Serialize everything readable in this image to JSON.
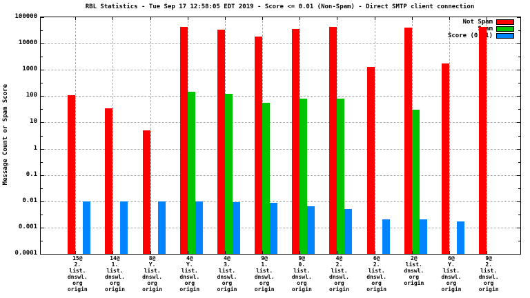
{
  "title": "RBL Statistics - Tue Sep 17 12:58:05 EDT 2019 - Score <= 0.01 (Non-Spam) - Direct SMTP client connection",
  "y_axis": {
    "label": "Message Count or Spam Score",
    "tick_labels": [
      "100000",
      "10000",
      "1000",
      "100",
      "10",
      "1",
      "0.1",
      "0.01",
      "0.001",
      "0.0001"
    ]
  },
  "legend": {
    "position": "top-right-inside",
    "items": [
      {
        "label": "Not Spam",
        "color": "#ff0000"
      },
      {
        "label": "Spam",
        "color": "#00c400"
      },
      {
        "label": "Score (0..1)",
        "color": "#0084ff"
      }
    ]
  },
  "colors": {
    "not_spam": "#ff0000",
    "spam": "#00c400",
    "score": "#0084ff",
    "grid": "#a8a8a8",
    "axis": "#000000"
  },
  "chart_data": {
    "type": "bar",
    "y_scale": "log",
    "ylim": [
      0.0001,
      100000
    ],
    "grid": true,
    "ylabel": "Message Count or Spam Score",
    "title": "RBL Statistics - Tue Sep 17 12:58:05 EDT 2019 - Score <= 0.01 (Non-Spam) - Direct SMTP client connection",
    "categories": [
      [
        "15@",
        "2.",
        "list.",
        "dnswl.",
        "org",
        "origin"
      ],
      [
        "14@",
        "1.",
        "list.",
        "dnswl.",
        "org",
        "origin"
      ],
      [
        "8@",
        "Y.",
        "list.",
        "dnswl.",
        "org",
        "origin"
      ],
      [
        "4@",
        "Y.",
        "list.",
        "dnswl.",
        "org",
        "origin"
      ],
      [
        "4@",
        "3.",
        "list.",
        "dnswl.",
        "org",
        "origin"
      ],
      [
        "9@",
        "1.",
        "list.",
        "dnswl.",
        "org",
        "origin"
      ],
      [
        "9@",
        "0.",
        "list.",
        "dnswl.",
        "org",
        "origin"
      ],
      [
        "4@",
        "2.",
        "list.",
        "dnswl.",
        "org",
        "origin"
      ],
      [
        "6@",
        "2.",
        "list.",
        "dnswl.",
        "org",
        "origin"
      ],
      [
        "2@",
        "list.",
        "dnswl.",
        "org",
        "origin"
      ],
      [
        "6@",
        "Y.",
        "list.",
        "dnswl.",
        "org",
        "origin"
      ],
      [
        "9@",
        "2.",
        "list.",
        "dnswl.",
        "org",
        "origin"
      ]
    ],
    "series": [
      {
        "name": "Not Spam",
        "color": "#ff0000",
        "values": [
          110,
          35,
          5,
          42000,
          34000,
          18000,
          36000,
          44000,
          1300,
          40000,
          1700,
          42000
        ]
      },
      {
        "name": "Spam",
        "color": "#00c400",
        "values": [
          null,
          null,
          null,
          150,
          120,
          55,
          80,
          78,
          null,
          30,
          null,
          null
        ]
      },
      {
        "name": "Score (0..1)",
        "color": "#0084ff",
        "values": [
          0.01,
          0.01,
          0.01,
          0.01,
          0.0095,
          0.0085,
          0.0065,
          0.005,
          0.002,
          0.002,
          0.0017,
          null
        ]
      }
    ]
  }
}
